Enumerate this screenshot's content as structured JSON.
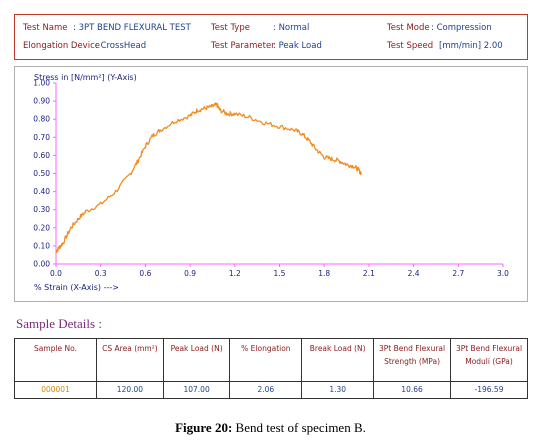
{
  "header": {
    "test_name_label": "Test Name",
    "test_name_value": ": 3PT BEND FLEXURAL TEST",
    "test_type_label": "Test Type",
    "test_type_value": ": Normal",
    "test_mode_label": "Test Mode",
    "test_mode_value": ": Compression",
    "elongation_device_label": "Elongation Device",
    "elongation_device_value": ": CrossHead",
    "test_parameter_label": "Test Parameter",
    "test_parameter_value": ": Peak Load",
    "test_speed_label": "Test Speed",
    "test_speed_value": "[mm/min]  2.00"
  },
  "chart_data": {
    "type": "line",
    "ylabel": "Stress in [N/mm²] (Y-Axis)",
    "xlabel": "% Strain (X-Axis) --->",
    "xlim": [
      0,
      3.0
    ],
    "ylim": [
      0,
      1.0
    ],
    "x_ticks": [
      "0.0",
      "0.3",
      "0.6",
      "0.9",
      "1.2",
      "1.5",
      "1.8",
      "2.1",
      "2.4",
      "2.7",
      "3.0"
    ],
    "y_ticks": [
      "0.00",
      "0.10",
      "0.20",
      "0.30",
      "0.40",
      "0.50",
      "0.60",
      "0.70",
      "0.80",
      "0.90",
      "1.00"
    ],
    "grid": false,
    "line_color": "#f28c1e",
    "series": [
      {
        "x": [
          0.0,
          0.02,
          0.05,
          0.1,
          0.15,
          0.2,
          0.3,
          0.4,
          0.5,
          0.55,
          0.6,
          0.65,
          0.7,
          0.8,
          0.9,
          0.95,
          1.0,
          1.05,
          1.08,
          1.1,
          1.15,
          1.2,
          1.3,
          1.4,
          1.5,
          1.6,
          1.65,
          1.7,
          1.75,
          1.8,
          1.85,
          1.9,
          1.95,
          2.0,
          2.03,
          2.05
        ],
        "y": [
          0.07,
          0.09,
          0.12,
          0.2,
          0.25,
          0.29,
          0.33,
          0.4,
          0.5,
          0.57,
          0.65,
          0.71,
          0.74,
          0.79,
          0.82,
          0.85,
          0.86,
          0.87,
          0.88,
          0.85,
          0.83,
          0.83,
          0.81,
          0.78,
          0.76,
          0.74,
          0.72,
          0.68,
          0.63,
          0.59,
          0.58,
          0.57,
          0.55,
          0.54,
          0.52,
          0.5
        ]
      }
    ]
  },
  "sample_details_title": "Sample Details :",
  "table": {
    "headers": [
      "Sample No.",
      "CS Area (mm²)",
      "Peak Load (N)",
      "% Elongation",
      "Break Load (N)",
      "3Pt Bend Flexural Strength (MPa)",
      "3Pt Bend Flexural Moduli (GPa)"
    ],
    "row": [
      "000001",
      "120.00",
      "107.00",
      "2.06",
      "1.30",
      "10.66",
      "-196.59"
    ]
  },
  "caption": {
    "label": "Figure 20:",
    "text": " Bend test of specimen B."
  }
}
